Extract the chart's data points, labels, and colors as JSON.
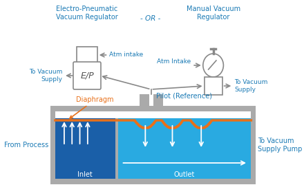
{
  "text_color": "#1a7ab5",
  "gray": "#aaaaaa",
  "gray_dark": "#888888",
  "dark_blue": "#1a5fa8",
  "light_blue": "#29aae1",
  "orange": "#e8701a",
  "white": "#ffffff",
  "label_ep_title": "Electro-Pneumatic\nVacuum Regulator",
  "label_mvr_title": "Manual Vacuum\nRegulator",
  "label_or": "- OR -",
  "label_atm_ep": "Atm intake",
  "label_atm_mvr": "Atm Intake",
  "label_vacuum_supply_left": "To Vacuum\nSupply",
  "label_vacuum_supply_right": "To Vacuum\nSupply",
  "label_diaphragm": "Diaphragm",
  "label_pilot": "Pilot (Reference)",
  "label_from_process": "From Process",
  "label_to_vacuum_pump": "To Vacuum\nSupply Pump",
  "label_inlet": "Inlet",
  "label_outlet": "Outlet",
  "label_ep": "E/P"
}
